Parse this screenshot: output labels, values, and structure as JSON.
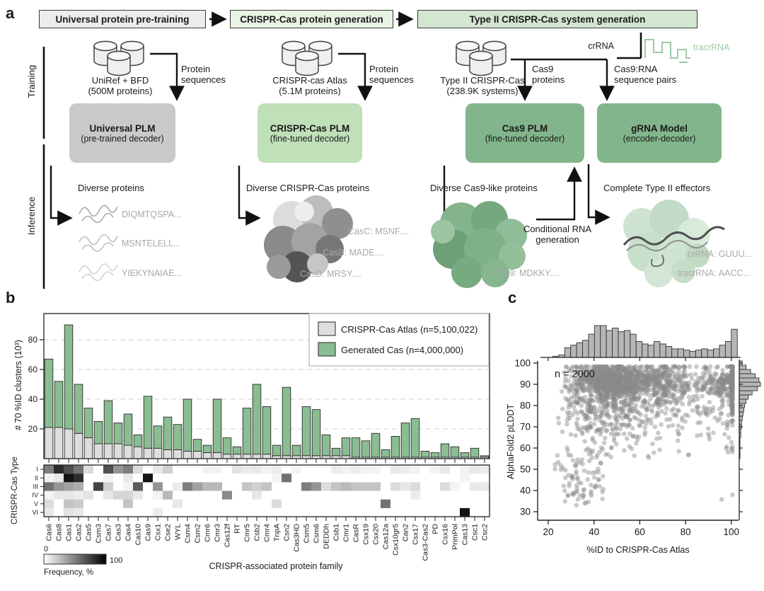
{
  "colors": {
    "header_gray": "#ececec",
    "header_green_pale": "#e7f3e3",
    "header_green_mid": "#d2e6d0",
    "plm_gray": "#c9c9c9",
    "plm_green_light": "#bfe0b8",
    "plm_green_dark": "#82b58c",
    "bar_gray": "#dedede",
    "bar_green": "#8abd92",
    "scatter_gray": "#8a8a8a",
    "rna_green": "#9fc9a5",
    "hist_gray": "#b6b6b6"
  },
  "panel_a": {
    "label": "a",
    "header1": "Universal protein pre-training",
    "header2": "CRISPR-Cas protein generation",
    "header3": "Type II CRISPR-Cas system generation",
    "training_label": "Training",
    "inference_label": "Inference",
    "col1": {
      "db_label": "UniRef + BFD\n(500M proteins)",
      "flow_label": "Protein\nsequences",
      "plm_title": "Universal PLM",
      "plm_sub": "(pre-trained decoder)",
      "inf_title": "Diverse proteins",
      "seq1": "DIQMTQSPA...",
      "seq2": "MSNTELELL...",
      "seq3": "YIEKYNAIAE..."
    },
    "col2": {
      "db_label": "CRISPR-cas Atlas\n(5.1M proteins)",
      "flow_label": "Protein\nsequences",
      "plm_title": "CRISPR-Cas PLM",
      "plm_sub": "(fine-tuned decoder)",
      "inf_title": "Diverse CRISPR-Cas proteins",
      "casc": "CasC: MSNF....",
      "casb": "CasB: MADE....",
      "casd": "CasD: MRSY...."
    },
    "col3": {
      "db_label": "Type II CRISPR-Cas\n(238.9K systems)",
      "flow1_label": "Cas9\nproteins",
      "flow2_label": "Cas9:RNA\nsequence pairs",
      "crrna_label": "crRNA",
      "tracrrna_label": "tracrRNA",
      "plm_title": "Cas9 PLM",
      "plm_sub": "(fine-tuned decoder)",
      "grna_title": "gRNA Model",
      "grna_sub": "(encoder-decoder)",
      "inf_title": "Diverse Cas9-like proteins",
      "cas9_seq": "Cas9: MDKKY....",
      "cond_label": "Conditional RNA\ngeneration",
      "eff_title": "Complete Type II effectors",
      "eff_seq1": "crRNA: GUUU...",
      "eff_seq2": "tracrRNA: AACC..."
    }
  },
  "panel_b_label": "b",
  "panel_c_label": "c",
  "chart_data": [
    {
      "id": "cas_family_clusters",
      "type": "bar",
      "stacked": true,
      "ylabel": "# 70 %ID clusters (10³)",
      "xlabel": "CRISPR-associated protein family",
      "yticks": [
        20,
        40,
        60,
        80
      ],
      "ylim": [
        0,
        95
      ],
      "grid": "dashed-horizontal",
      "legend_position": "top-right",
      "categories": [
        "Cas6",
        "Cas8",
        "Cas1",
        "Cas2",
        "Cas5",
        "Csm3",
        "Cas7",
        "Cas3",
        "Cas4",
        "Cas10",
        "Cas9",
        "Csx1",
        "Cse2",
        "WYL",
        "Csm4",
        "Csm2",
        "Cmr6",
        "Cmr3",
        "Cas12f",
        "RT",
        "Cmr5",
        "Csb2",
        "Cmr4",
        "TnpA",
        "Csn2",
        "Cas3HD",
        "Csm5",
        "Csm6",
        "DEDDh",
        "Csb1",
        "Cmr1",
        "CasR",
        "Csx19",
        "Csx20",
        "Cas12a",
        "Csx10gr5",
        "Can2",
        "Csx17",
        "Cas3-Cas2",
        "PD",
        "Csx16",
        "PrimPol",
        "Cas13",
        "Csc1",
        "Csc2"
      ],
      "series": [
        {
          "name": "CRISPR-Cas Atlas (n=5,100,022)",
          "color": "#dedede",
          "values": [
            21,
            21,
            20,
            17,
            14,
            10,
            10,
            10,
            9,
            8,
            7,
            7,
            6,
            6,
            5,
            5,
            4,
            4,
            3,
            3,
            3,
            3,
            3,
            2,
            2,
            2,
            2,
            2,
            2,
            2,
            2,
            1,
            1,
            1,
            1,
            1,
            1,
            1,
            1,
            1,
            1,
            1,
            1,
            1,
            1
          ]
        },
        {
          "name": "Generated Cas (n=4,000,000)",
          "color": "#8abd92",
          "values": [
            46,
            31,
            70,
            33,
            20,
            15,
            29,
            14,
            21,
            8,
            35,
            15,
            22,
            17,
            35,
            8,
            5,
            36,
            11,
            5,
            31,
            47,
            32,
            7,
            46,
            7,
            33,
            31,
            14,
            5,
            12,
            13,
            11,
            16,
            5,
            14,
            23,
            26,
            4,
            3,
            9,
            7,
            3,
            6,
            1
          ]
        }
      ],
      "heatmap": {
        "ylabel": "CRISPR-Cas Type",
        "rows": [
          "I",
          "II",
          "III",
          "IV",
          "V",
          "VI"
        ],
        "values": [
          [
            55,
            90,
            75,
            60,
            15,
            0,
            75,
            45,
            55,
            15,
            0,
            10,
            20,
            0,
            0,
            0,
            5,
            5,
            0,
            12,
            8,
            10,
            5,
            8,
            0,
            5,
            0,
            0,
            0,
            8,
            5,
            8,
            5,
            5,
            0,
            10,
            8,
            5,
            0,
            5,
            10,
            0,
            5,
            10,
            8
          ],
          [
            5,
            10,
            100,
            90,
            0,
            0,
            5,
            0,
            10,
            0,
            100,
            0,
            0,
            0,
            0,
            0,
            0,
            0,
            0,
            0,
            0,
            0,
            0,
            5,
            60,
            0,
            0,
            0,
            0,
            0,
            0,
            0,
            0,
            0,
            0,
            0,
            0,
            0,
            0,
            0,
            0,
            0,
            5,
            0,
            0
          ],
          [
            60,
            45,
            40,
            35,
            0,
            80,
            20,
            0,
            5,
            70,
            0,
            45,
            0,
            8,
            55,
            40,
            30,
            30,
            0,
            0,
            25,
            20,
            25,
            0,
            0,
            0,
            55,
            45,
            15,
            25,
            30,
            25,
            25,
            25,
            0,
            15,
            10,
            15,
            0,
            0,
            15,
            5,
            0,
            10,
            10
          ],
          [
            5,
            10,
            10,
            8,
            12,
            0,
            10,
            18,
            18,
            10,
            0,
            5,
            30,
            0,
            0,
            0,
            0,
            0,
            50,
            0,
            0,
            10,
            0,
            0,
            0,
            0,
            0,
            0,
            0,
            0,
            0,
            0,
            0,
            0,
            0,
            0,
            0,
            8,
            0,
            0,
            0,
            0,
            0,
            0,
            0
          ],
          [
            15,
            0,
            25,
            22,
            0,
            0,
            0,
            0,
            25,
            0,
            0,
            0,
            0,
            10,
            0,
            0,
            0,
            0,
            0,
            0,
            0,
            0,
            0,
            15,
            0,
            0,
            0,
            0,
            0,
            0,
            0,
            0,
            0,
            0,
            60,
            0,
            0,
            0,
            0,
            0,
            0,
            0,
            0,
            0,
            0
          ],
          [
            10,
            0,
            12,
            10,
            0,
            0,
            0,
            0,
            0,
            0,
            0,
            8,
            0,
            0,
            0,
            0,
            0,
            0,
            0,
            0,
            0,
            0,
            0,
            0,
            0,
            0,
            0,
            0,
            0,
            0,
            0,
            0,
            0,
            0,
            0,
            0,
            0,
            0,
            0,
            0,
            0,
            0,
            100,
            0,
            0
          ]
        ],
        "colorbar": {
          "min_label": "0",
          "max_label": "100",
          "label": "Frequency, %"
        }
      }
    },
    {
      "id": "plddt_vs_identity",
      "type": "scatter",
      "n": 2000,
      "n_label": "n = 2000",
      "xlabel": "%ID to CRISPR-Cas Atlas",
      "ylabel": "AlphaFold2 pLDDT",
      "xticks": [
        20,
        40,
        60,
        80,
        100
      ],
      "yticks": [
        30,
        40,
        50,
        60,
        70,
        80,
        90,
        100
      ],
      "xlim": [
        15,
        105
      ],
      "ylim": [
        28,
        102
      ],
      "point_color": "#8a8a8a",
      "x_marginal": {
        "start": 22,
        "bin_width": 2.6,
        "counts": [
          1,
          2,
          8,
          10,
          12,
          14,
          19,
          26,
          26,
          22,
          24,
          21,
          22,
          19,
          13,
          11,
          10,
          13,
          11,
          9,
          7,
          7,
          6,
          5,
          6,
          7,
          6,
          7,
          10,
          13,
          23
        ]
      },
      "y_marginal": {
        "start": 55,
        "bin_width": 2,
        "counts": [
          1,
          1,
          1,
          1,
          1,
          2,
          2,
          3,
          3,
          4,
          5,
          6,
          7,
          9,
          12,
          17,
          24,
          28,
          26,
          21,
          15,
          9,
          4
        ]
      },
      "description": "dense cloud at pLDDT 80-97 across %ID 35-100; low-%ID tail spreads down to pLDDT 30; few low-pLDDT outliers near %ID 95-100"
    }
  ]
}
